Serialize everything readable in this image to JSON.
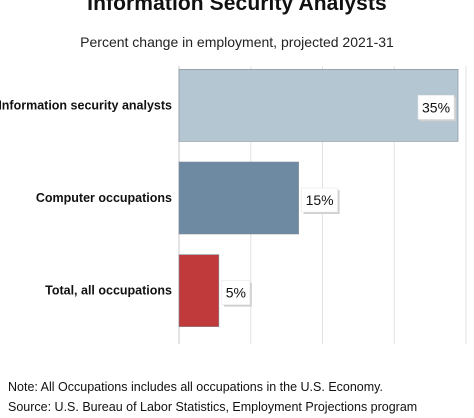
{
  "title": "Information Security Analysts",
  "subtitle": "Percent change in employment, projected 2021-31",
  "notes": {
    "note": "Note: All Occupations includes all occupations in the U.S. Economy.",
    "source": "Source: U.S. Bureau of Labor Statistics, Employment Projections program"
  },
  "chart_data": {
    "type": "bar",
    "orientation": "horizontal",
    "title": "Information Security Analysts",
    "subtitle": "Percent change in employment, projected 2021-31",
    "categories": [
      "Information security analysts",
      "Computer occupations",
      "Total, all occupations"
    ],
    "values": [
      35,
      15,
      5
    ],
    "data_labels": [
      "35%",
      "15%",
      "5%"
    ],
    "colors": [
      "#b4c6d2",
      "#6e8aa3",
      "#c0393b"
    ],
    "xlim": [
      0,
      36
    ],
    "grid": true,
    "legend": "none"
  }
}
